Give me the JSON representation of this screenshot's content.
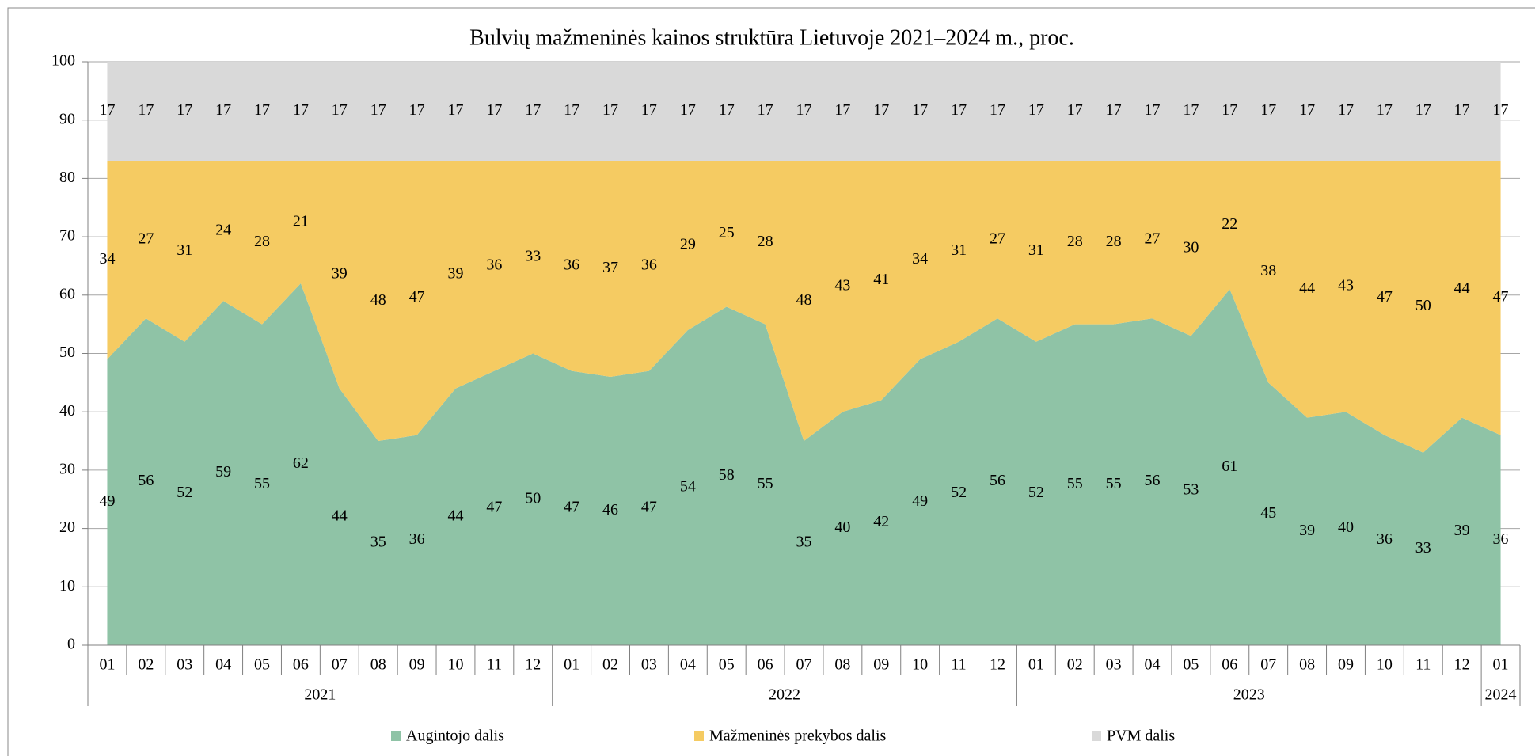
{
  "chart_data": {
    "type": "stacked_area",
    "title": "Bulvių mažmeninės kainos struktūra Lietuvoje 2021–2024 m., proc.",
    "category_groups": [
      {
        "label": "2021",
        "categories": [
          "01",
          "02",
          "03",
          "04",
          "05",
          "06",
          "07",
          "08",
          "09",
          "10",
          "11",
          "12"
        ]
      },
      {
        "label": "2022",
        "categories": [
          "01",
          "02",
          "03",
          "04",
          "05",
          "06",
          "07",
          "08",
          "09",
          "10",
          "11",
          "12"
        ]
      },
      {
        "label": "2023",
        "categories": [
          "01",
          "02",
          "03",
          "04",
          "05",
          "06",
          "07",
          "08",
          "09",
          "10",
          "11",
          "12"
        ]
      },
      {
        "label": "2024",
        "categories": [
          "01"
        ]
      }
    ],
    "series": [
      {
        "name": "Augintojo dalis",
        "color": "#8fc3a6",
        "values": [
          49,
          56,
          52,
          59,
          55,
          62,
          44,
          35,
          36,
          44,
          47,
          50,
          47,
          46,
          47,
          54,
          58,
          55,
          35,
          40,
          42,
          49,
          52,
          56,
          52,
          55,
          55,
          56,
          53,
          61,
          45,
          39,
          40,
          36,
          33,
          39,
          36
        ]
      },
      {
        "name": "Mažmeninės prekybos dalis",
        "color": "#f5cb62",
        "values": [
          34,
          27,
          31,
          24,
          28,
          21,
          39,
          48,
          47,
          39,
          36,
          33,
          36,
          37,
          36,
          29,
          25,
          28,
          48,
          43,
          41,
          34,
          31,
          27,
          31,
          28,
          28,
          27,
          30,
          22,
          38,
          44,
          43,
          47,
          50,
          44,
          47
        ]
      },
      {
        "name": "PVM dalis",
        "color": "#d9d9d9",
        "values": [
          17,
          17,
          17,
          17,
          17,
          17,
          17,
          17,
          17,
          17,
          17,
          17,
          17,
          17,
          17,
          17,
          17,
          17,
          17,
          17,
          17,
          17,
          17,
          17,
          17,
          17,
          17,
          17,
          17,
          17,
          17,
          17,
          17,
          17,
          17,
          17,
          17
        ]
      }
    ],
    "ylim": [
      0,
      100
    ],
    "yticks": [
      0,
      10,
      20,
      30,
      40,
      50,
      60,
      70,
      80,
      90,
      100
    ],
    "grid": true,
    "legend": "bottom"
  }
}
